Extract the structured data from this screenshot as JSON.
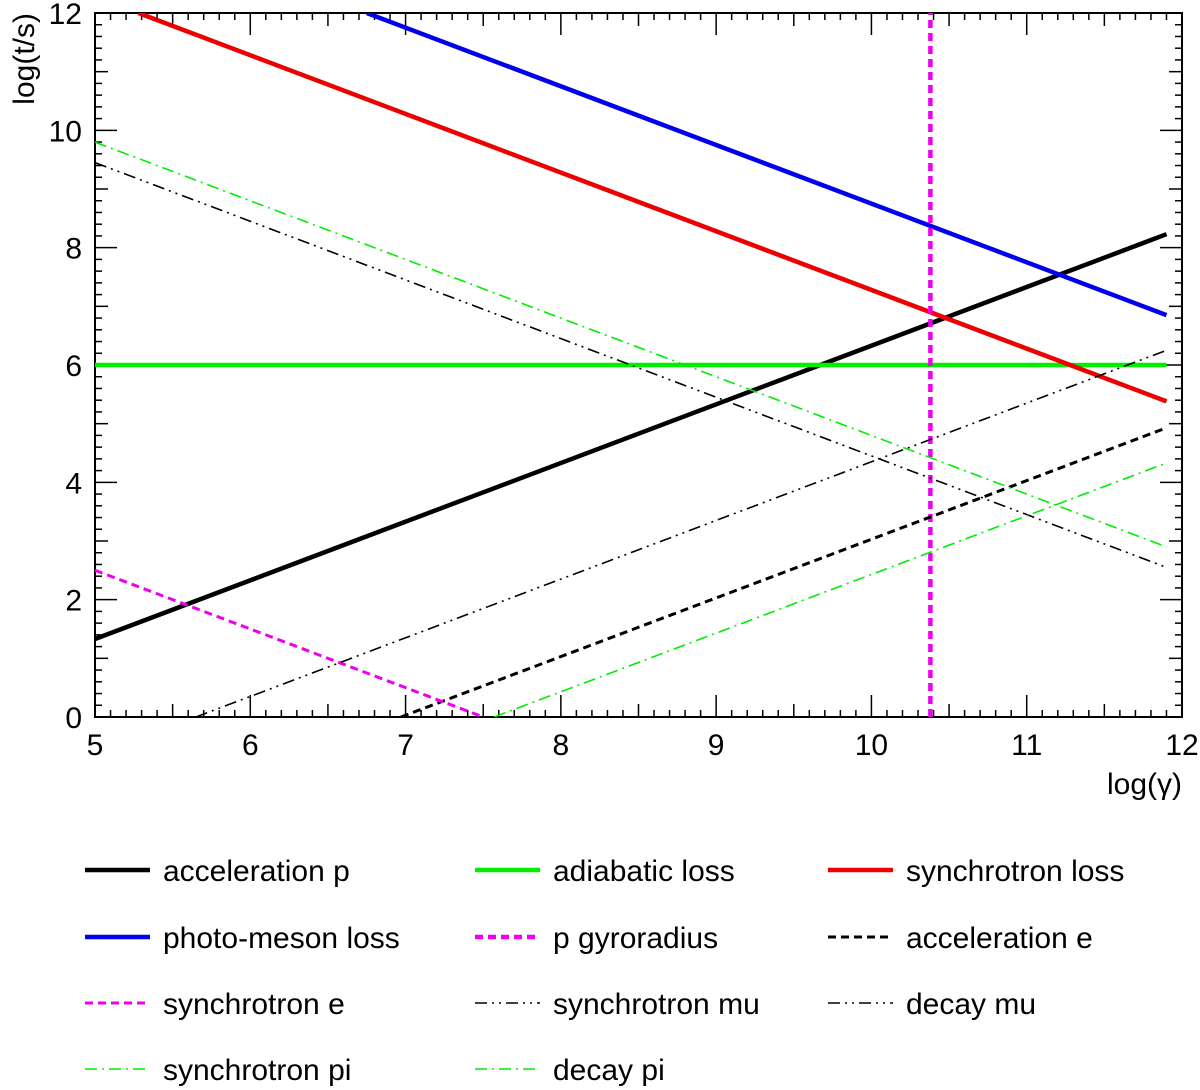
{
  "chart_data": {
    "type": "line",
    "title": "",
    "xlabel": "log(γ)",
    "ylabel": "log(t/s)",
    "xlim": [
      5,
      12
    ],
    "ylim": [
      0,
      12
    ],
    "x_ticks": [
      "5",
      "6",
      "7",
      "8",
      "9",
      "10",
      "11",
      "12"
    ],
    "y_ticks": [
      "0",
      "2",
      "4",
      "6",
      "8",
      "10",
      "12"
    ],
    "grid": false,
    "legend_position": "bottom",
    "series": [
      {
        "name": "acceleration p",
        "color": "#000000",
        "style": "solid",
        "weight": "thick",
        "points": [
          [
            5,
            1.33
          ],
          [
            11.9,
            8.23
          ]
        ]
      },
      {
        "name": "adiabatic loss",
        "color": "#00ee00",
        "style": "solid",
        "weight": "thick",
        "points": [
          [
            5,
            6.0
          ],
          [
            11.9,
            6.0
          ]
        ]
      },
      {
        "name": "synchrotron loss",
        "color": "#ee0000",
        "style": "solid",
        "weight": "thick",
        "points": [
          [
            5.28,
            12.0
          ],
          [
            11.9,
            5.38
          ]
        ]
      },
      {
        "name": "photo-meson loss",
        "color": "#0000ee",
        "style": "solid",
        "weight": "thick",
        "points": [
          [
            6.75,
            12.0
          ],
          [
            11.9,
            6.85
          ]
        ]
      },
      {
        "name": "p gyroradius",
        "color": "#ee00ee",
        "style": "dashed",
        "weight": "thick",
        "points": [
          [
            10.38,
            0
          ],
          [
            10.38,
            12.0
          ]
        ]
      },
      {
        "name": "acceleration e",
        "color": "#000000",
        "style": "dashed",
        "weight": "medium",
        "points": [
          [
            6.97,
            0
          ],
          [
            11.9,
            4.93
          ]
        ]
      },
      {
        "name": "synchrotron e",
        "color": "#ee00ee",
        "style": "dashed",
        "weight": "medium",
        "points": [
          [
            5,
            2.5
          ],
          [
            7.5,
            0
          ]
        ]
      },
      {
        "name": "synchrotron mu",
        "color": "#000000",
        "style": "dash-dot-dot",
        "weight": "thin",
        "points": [
          [
            5.65,
            0
          ],
          [
            11.9,
            6.25
          ]
        ]
      },
      {
        "name": "decay mu",
        "color": "#000000",
        "style": "dash-dot-dot",
        "weight": "thin",
        "points": [
          [
            5,
            9.45
          ],
          [
            11.9,
            2.55
          ]
        ]
      },
      {
        "name": "synchrotron pi",
        "color": "#00ee00",
        "style": "dash-dot",
        "weight": "thin",
        "points": [
          [
            5,
            9.8
          ],
          [
            11.9,
            2.9
          ]
        ]
      },
      {
        "name": "decay pi",
        "color": "#00ee00",
        "style": "dash-dot",
        "weight": "thin",
        "points": [
          [
            7.57,
            0
          ],
          [
            11.9,
            4.33
          ]
        ]
      }
    ]
  }
}
